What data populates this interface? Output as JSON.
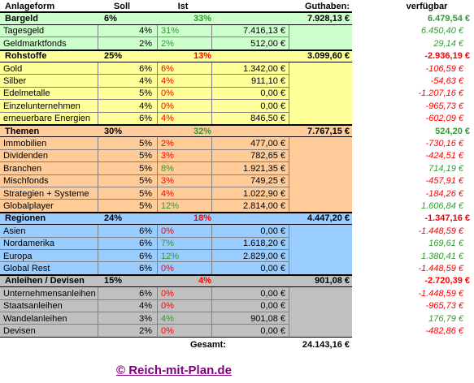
{
  "header": {
    "columns": [
      "Anlageform",
      "Soll",
      "Ist",
      "Guthaben:",
      "verfügbar"
    ]
  },
  "groups": [
    {
      "name": "Bargeld",
      "soll": "6%",
      "ist": "33%",
      "guthaben": "7.928,13 €",
      "verfuegbar": "6.479,54 €",
      "color": "#339933",
      "background": "#ccffcc",
      "items": [
        {
          "name": "Tagesgeld",
          "soll": "4%",
          "ist": "31%",
          "guthaben": "7.416,13 €",
          "verfuegbar": "6.450,40 €",
          "color": "#339933"
        },
        {
          "name": "Geldmarktfonds",
          "soll": "2%",
          "ist": "2%",
          "guthaben": "512,00 €",
          "verfuegbar": "29,14 €",
          "color": "#339933"
        }
      ]
    },
    {
      "name": "Rohstoffe",
      "soll": "25%",
      "ist": "13%",
      "guthaben": "3.099,60 €",
      "verfuegbar": "-2.936,19 €",
      "color": "#ff0000",
      "background": "#ffff99",
      "items": [
        {
          "name": "Gold",
          "soll": "6%",
          "ist": "6%",
          "guthaben": "1.342,00 €",
          "verfuegbar": "-106,59 €",
          "color": "#ff0000"
        },
        {
          "name": "Silber",
          "soll": "4%",
          "ist": "4%",
          "guthaben": "911,10 €",
          "verfuegbar": "-54,63 €",
          "color": "#ff0000"
        },
        {
          "name": "Edelmetalle",
          "soll": "5%",
          "ist": "0%",
          "guthaben": "0,00 €",
          "verfuegbar": "-1.207,16 €",
          "color": "#ff0000"
        },
        {
          "name": "Einzelunternehmen",
          "soll": "4%",
          "ist": "0%",
          "guthaben": "0,00 €",
          "verfuegbar": "-965,73 €",
          "color": "#ff0000"
        },
        {
          "name": "erneuerbare Energien",
          "soll": "6%",
          "ist": "4%",
          "guthaben": "846,50 €",
          "verfuegbar": "-602,09 €",
          "color": "#ff0000"
        }
      ]
    },
    {
      "name": "Themen",
      "soll": "30%",
      "ist": "32%",
      "guthaben": "7.767,15 €",
      "verfuegbar": "524,20 €",
      "color": "#339933",
      "background": "#ffcc99",
      "items": [
        {
          "name": "Immobilien",
          "soll": "5%",
          "ist": "2%",
          "guthaben": "477,00 €",
          "verfuegbar": "-730,16 €",
          "color": "#ff0000"
        },
        {
          "name": "Dividenden",
          "soll": "5%",
          "ist": "3%",
          "guthaben": "782,65 €",
          "verfuegbar": "-424,51 €",
          "color": "#ff0000"
        },
        {
          "name": "Branchen",
          "soll": "5%",
          "ist": "8%",
          "guthaben": "1.921,35 €",
          "verfuegbar": "714,19 €",
          "color": "#339933"
        },
        {
          "name": "Mischfonds",
          "soll": "5%",
          "ist": "3%",
          "guthaben": "749,25 €",
          "verfuegbar": "-457,91 €",
          "color": "#ff0000"
        },
        {
          "name": "Strategien + Systeme",
          "soll": "5%",
          "ist": "4%",
          "guthaben": "1.022,90 €",
          "verfuegbar": "-184,26 €",
          "color": "#ff0000"
        },
        {
          "name": "Globalplayer",
          "soll": "5%",
          "ist": "12%",
          "guthaben": "2.814,00 €",
          "verfuegbar": "1.606,84 €",
          "color": "#339933"
        }
      ]
    },
    {
      "name": "Regionen",
      "soll": "24%",
      "ist": "18%",
      "guthaben": "4.447,20 €",
      "verfuegbar": "-1.347,16 €",
      "color": "#ff0000",
      "background": "#99ccff",
      "items": [
        {
          "name": "Asien",
          "soll": "6%",
          "ist": "0%",
          "guthaben": "0,00 €",
          "verfuegbar": "-1.448,59 €",
          "color": "#ff0000"
        },
        {
          "name": "Nordamerika",
          "soll": "6%",
          "ist": "7%",
          "guthaben": "1.618,20 €",
          "verfuegbar": "169,61 €",
          "color": "#339933"
        },
        {
          "name": "Europa",
          "soll": "6%",
          "ist": "12%",
          "guthaben": "2.829,00 €",
          "verfuegbar": "1.380,41 €",
          "color": "#339933"
        },
        {
          "name": "Global Rest",
          "soll": "6%",
          "ist": "0%",
          "guthaben": "0,00 €",
          "verfuegbar": "-1.448,59 €",
          "color": "#ff0000"
        }
      ]
    },
    {
      "name": "Anleihen / Devisen",
      "soll": "15%",
      "ist": "4%",
      "guthaben": "901,08 €",
      "verfuegbar": "-2.720,39 €",
      "color": "#ff0000",
      "background": "#c0c0c0",
      "items": [
        {
          "name": "Unternehmensanleihen",
          "soll": "6%",
          "ist": "0%",
          "guthaben": "0,00 €",
          "verfuegbar": "-1.448,59 €",
          "color": "#ff0000"
        },
        {
          "name": "Staatsanleihen",
          "soll": "4%",
          "ist": "0%",
          "guthaben": "0,00 €",
          "verfuegbar": "-965,73 €",
          "color": "#ff0000"
        },
        {
          "name": "Wandelanleihen",
          "soll": "3%",
          "ist": "4%",
          "guthaben": "901,08 €",
          "verfuegbar": "176,79 €",
          "color": "#339933"
        },
        {
          "name": "Devisen",
          "soll": "2%",
          "ist": "0%",
          "guthaben": "0,00 €",
          "verfuegbar": "-482,86 €",
          "color": "#ff0000"
        }
      ]
    }
  ],
  "total": {
    "label": "Gesamt:",
    "value": "24.143,16 €"
  },
  "footer": {
    "link": "© Reich-mit-Plan.de"
  }
}
